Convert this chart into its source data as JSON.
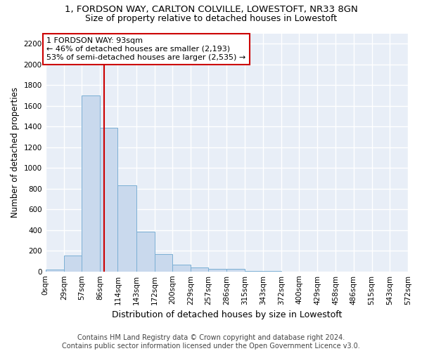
{
  "title_line1": "1, FORDSON WAY, CARLTON COLVILLE, LOWESTOFT, NR33 8GN",
  "title_line2": "Size of property relative to detached houses in Lowestoft",
  "xlabel": "Distribution of detached houses by size in Lowestoft",
  "ylabel": "Number of detached properties",
  "bar_color": "#c9d9ed",
  "bar_edge_color": "#7bafd4",
  "background_color": "#e8eef7",
  "grid_color": "#ffffff",
  "annotation_line_color": "#cc0000",
  "annotation_box_color": "#cc0000",
  "annotation_text": "1 FORDSON WAY: 93sqm\n← 46% of detached houses are smaller (2,193)\n53% of semi-detached houses are larger (2,535) →",
  "property_size_sqm": 93,
  "bin_edges": [
    0,
    29,
    57,
    86,
    114,
    143,
    172,
    200,
    229,
    257,
    286,
    315,
    343,
    372,
    400,
    429,
    458,
    486,
    515,
    543,
    572
  ],
  "bar_heights": [
    20,
    155,
    1700,
    1390,
    835,
    385,
    165,
    65,
    38,
    28,
    28,
    5,
    5,
    0,
    0,
    0,
    0,
    0,
    0,
    0
  ],
  "ylim": [
    0,
    2300
  ],
  "yticks": [
    0,
    200,
    400,
    600,
    800,
    1000,
    1200,
    1400,
    1600,
    1800,
    2000,
    2200
  ],
  "footer_text": "Contains HM Land Registry data © Crown copyright and database right 2024.\nContains public sector information licensed under the Open Government Licence v3.0.",
  "title_fontsize": 9.5,
  "subtitle_fontsize": 9,
  "xlabel_fontsize": 9,
  "ylabel_fontsize": 8.5,
  "tick_fontsize": 7.5,
  "annotation_fontsize": 8,
  "footer_fontsize": 7
}
